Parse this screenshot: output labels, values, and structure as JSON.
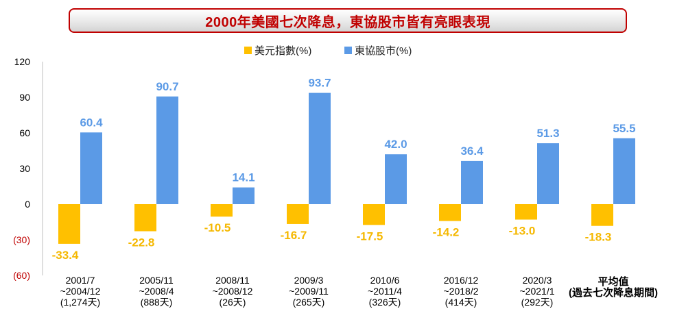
{
  "title": "2000年美國七次降息，東協股市皆有亮眼表現",
  "colors": {
    "series1": "#ffc000",
    "series2": "#5b9ae6",
    "title": "#c00000",
    "neg_tick": "#c00000"
  },
  "chart_data": {
    "type": "bar",
    "ylim": [
      -60,
      120
    ],
    "yticks": [
      {
        "value": 120,
        "label": "120"
      },
      {
        "value": 90,
        "label": "90"
      },
      {
        "value": 60,
        "label": "60"
      },
      {
        "value": 30,
        "label": "30"
      },
      {
        "value": 0,
        "label": "0"
      },
      {
        "value": -30,
        "label": "(30)"
      },
      {
        "value": -60,
        "label": "(60)"
      }
    ],
    "legend_position": "top-center",
    "categories": [
      {
        "lines": [
          "2001/7",
          "~2004/12",
          "(1,274天)"
        ],
        "bold": false
      },
      {
        "lines": [
          "2005/11",
          "~2008/4",
          "(888天)"
        ],
        "bold": false
      },
      {
        "lines": [
          "2008/11",
          "~2008/12",
          "(26天)"
        ],
        "bold": false
      },
      {
        "lines": [
          "2009/3",
          "~2009/11",
          "(265天)"
        ],
        "bold": false
      },
      {
        "lines": [
          "2010/6",
          "~2011/4",
          "(326天)"
        ],
        "bold": false
      },
      {
        "lines": [
          "2016/12",
          "~2018/2",
          "(414天)"
        ],
        "bold": false
      },
      {
        "lines": [
          "2020/3",
          "~2021/1",
          "(292天)"
        ],
        "bold": false
      },
      {
        "lines": [
          "平均值",
          "(過去七次降息期間)"
        ],
        "bold": true
      }
    ],
    "series": [
      {
        "name": "美元指數(%)",
        "values": [
          -33.4,
          -22.8,
          -10.5,
          -16.7,
          -17.5,
          -14.2,
          -13.0,
          -18.3
        ]
      },
      {
        "name": "東協股市(%)",
        "values": [
          60.4,
          90.7,
          14.1,
          93.7,
          42.0,
          36.4,
          51.3,
          55.5
        ]
      }
    ]
  }
}
